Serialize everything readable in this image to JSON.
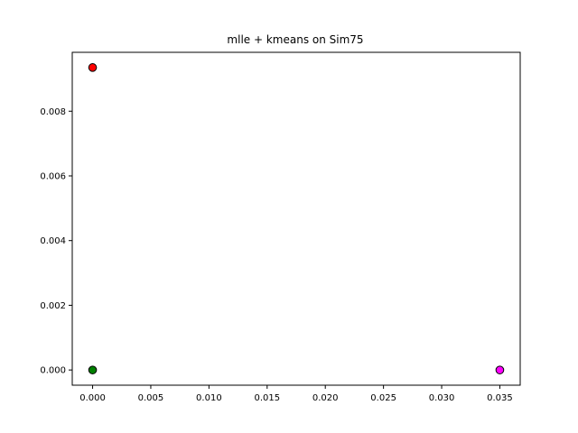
{
  "chart_data": {
    "type": "scatter",
    "title": "mlle + kmeans on Sim75",
    "xlabel": "",
    "ylabel": "",
    "xlim": [
      -0.00175,
      0.03675
    ],
    "ylim": [
      -0.00047,
      0.00982
    ],
    "x_ticks": [
      0.0,
      0.005,
      0.01,
      0.015,
      0.02,
      0.025,
      0.03,
      0.035
    ],
    "x_tick_labels": [
      "0.000",
      "0.005",
      "0.010",
      "0.015",
      "0.020",
      "0.025",
      "0.030",
      "0.035"
    ],
    "y_ticks": [
      0.0,
      0.002,
      0.004,
      0.006,
      0.008
    ],
    "y_tick_labels": [
      "0.000",
      "0.002",
      "0.004",
      "0.006",
      "0.008"
    ],
    "grid": false,
    "legend": "none",
    "clusters": [
      {
        "color": "#ff0000",
        "points": [
          [
            0.0,
            0.00935
          ]
        ]
      },
      {
        "color": "#008000",
        "points": [
          [
            0.0,
            0.0
          ]
        ]
      },
      {
        "color": "#ff00ff",
        "points": [
          [
            0.035,
            0.0
          ]
        ]
      }
    ],
    "marker_edge_color": "#000000"
  }
}
